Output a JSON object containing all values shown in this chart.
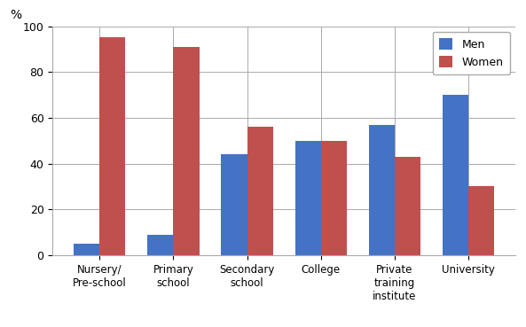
{
  "categories": [
    "Nursery/\nPre-school",
    "Primary\nschool",
    "Secondary\nschool",
    "College",
    "Private\ntraining\ninstitute",
    "University"
  ],
  "men_values": [
    5,
    9,
    44,
    50,
    57,
    70
  ],
  "women_values": [
    95,
    91,
    56,
    50,
    43,
    30
  ],
  "men_color": "#4472C4",
  "women_color": "#C0504D",
  "ylabel": "%",
  "ylim": [
    0,
    100
  ],
  "yticks": [
    0,
    20,
    40,
    60,
    80,
    100
  ],
  "legend_labels": [
    "Men",
    "Women"
  ],
  "bar_width": 0.35,
  "grid_color": "#AAAAAA",
  "background_color": "#FFFFFF",
  "figure_width": 5.93,
  "figure_height": 3.69,
  "dpi": 100
}
